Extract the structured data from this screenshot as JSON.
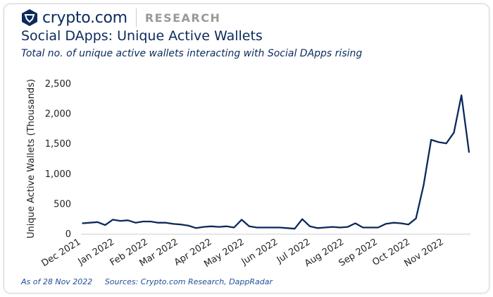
{
  "brand": {
    "name": "crypto.com",
    "section": "RESEARCH"
  },
  "chart_data": {
    "type": "line",
    "title": "Social DApps: Unique Active Wallets",
    "subtitle": "Total no. of unique active wallets interacting with Social DApps rising",
    "xlabel": "",
    "ylabel": "Unique Active Wallets (Thousands)",
    "ylim": [
      0,
      2500
    ],
    "yticks": [
      0,
      500,
      1000,
      1500,
      2000,
      2500
    ],
    "ytick_labels": [
      "0",
      "500",
      "1,000",
      "1,500",
      "2,000",
      "2,500"
    ],
    "xtick_dates": [
      "2021-12-01",
      "2022-01-01",
      "2022-02-01",
      "2022-03-01",
      "2022-04-01",
      "2022-05-01",
      "2022-06-01",
      "2022-07-01",
      "2022-08-01",
      "2022-09-01",
      "2022-10-01",
      "2022-11-01"
    ],
    "xtick_labels": [
      "Dec 2021",
      "Jan 2022",
      "Feb 2022",
      "Mar 2022",
      "Apr 2022",
      "May 2022",
      "Jun 2022",
      "Jul 2022",
      "Aug 2022",
      "Sep 2022",
      "Oct 2022",
      "Nov 2022"
    ],
    "grid": false,
    "color": "#0b2a5b",
    "x": [
      "2021-12-06",
      "2021-12-13",
      "2021-12-20",
      "2021-12-27",
      "2022-01-03",
      "2022-01-10",
      "2022-01-17",
      "2022-01-24",
      "2022-01-31",
      "2022-02-07",
      "2022-02-14",
      "2022-02-21",
      "2022-02-28",
      "2022-03-07",
      "2022-03-14",
      "2022-03-21",
      "2022-03-28",
      "2022-04-04",
      "2022-04-11",
      "2022-04-18",
      "2022-04-25",
      "2022-05-02",
      "2022-05-09",
      "2022-05-16",
      "2022-05-23",
      "2022-05-30",
      "2022-06-06",
      "2022-06-13",
      "2022-06-20",
      "2022-06-27",
      "2022-07-04",
      "2022-07-11",
      "2022-07-18",
      "2022-07-25",
      "2022-08-01",
      "2022-08-08",
      "2022-08-15",
      "2022-08-22",
      "2022-08-29",
      "2022-09-05",
      "2022-09-12",
      "2022-09-19",
      "2022-09-26",
      "2022-10-03",
      "2022-10-10",
      "2022-10-17",
      "2022-10-24",
      "2022-10-31",
      "2022-11-07",
      "2022-11-14",
      "2022-11-21",
      "2022-11-28"
    ],
    "values": [
      170,
      180,
      190,
      140,
      230,
      210,
      220,
      180,
      200,
      200,
      180,
      180,
      160,
      150,
      130,
      90,
      110,
      120,
      110,
      120,
      100,
      230,
      120,
      100,
      100,
      100,
      100,
      90,
      80,
      240,
      120,
      90,
      100,
      110,
      100,
      110,
      170,
      100,
      100,
      100,
      160,
      180,
      170,
      150,
      250,
      800,
      1560,
      1520,
      1500,
      1680,
      2300,
      1350
    ]
  },
  "footer": {
    "as_of": "As of 28 Nov 2022",
    "sources": "Sources: Crypto.com Research, DappRadar"
  }
}
